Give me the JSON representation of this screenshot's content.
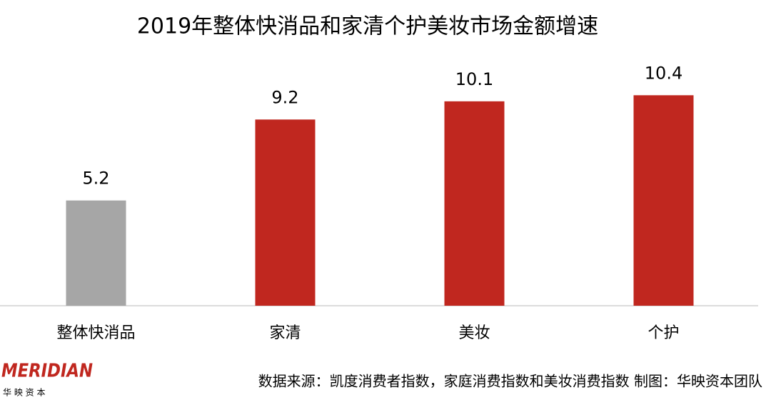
{
  "chart_data": {
    "type": "bar",
    "title": "2019年整体快消品和家清个护美妆市场金额增速",
    "categories": [
      "整体快消品",
      "家清",
      "美妆",
      "个护"
    ],
    "values": [
      5.2,
      9.2,
      10.1,
      10.4
    ],
    "colors": [
      "#a6a6a6",
      "#c0271f",
      "#c0271f",
      "#c0271f"
    ],
    "ylim": [
      0,
      12
    ],
    "grid": false
  },
  "footer": {
    "logo": "MERIDIAN",
    "logo_sub": "华 映 资 本",
    "source": "数据来源：凯度消费者指数，家庭消费指数和美妆消费指数  制图：华映资本团队"
  }
}
